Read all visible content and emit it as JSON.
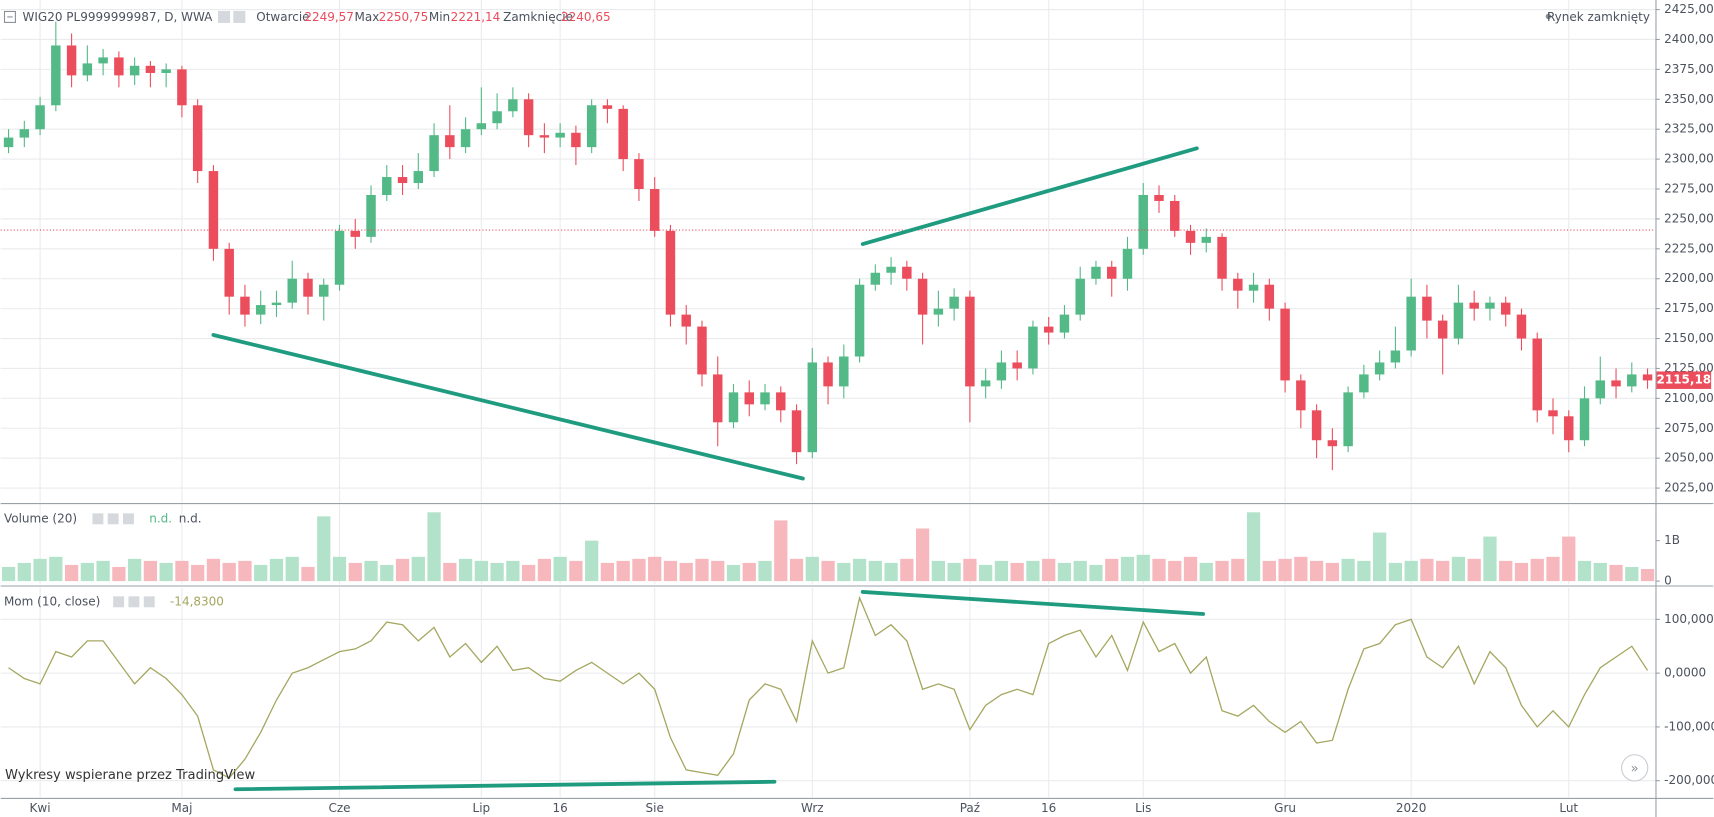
{
  "header": {
    "symbol": "WIG20 PL9999999987, D, WWA",
    "open_label": "Otwarcie",
    "open": "2249,57",
    "max_label": "Max",
    "max": "2250,75",
    "min_label": "Min",
    "min": "2221,14",
    "close_label": "Zamknięcie",
    "close": {
      "value": 2240.65,
      "label": "2240,65"
    },
    "status": "Rynek zamknięty"
  },
  "watermark": "Wykresy wspierane przez TradingView",
  "chart_data": [
    {
      "type": "candlestick",
      "up_color": "#53b987",
      "down_color": "#eb4d5c",
      "categories": [
        null,
        null,
        "Kwi",
        null,
        null,
        null,
        null,
        null,
        null,
        null,
        null,
        "Maj",
        null,
        null,
        null,
        null,
        null,
        null,
        null,
        null,
        null,
        "Cze",
        null,
        null,
        null,
        null,
        null,
        null,
        null,
        null,
        "Lip",
        null,
        null,
        null,
        null,
        "16",
        null,
        null,
        null,
        null,
        null,
        "Sie",
        null,
        null,
        null,
        null,
        null,
        null,
        null,
        null,
        null,
        "Wrz",
        null,
        null,
        null,
        null,
        null,
        null,
        null,
        null,
        null,
        "Paź",
        null,
        null,
        null,
        null,
        "16",
        null,
        null,
        null,
        null,
        null,
        "Lis",
        null,
        null,
        null,
        null,
        null,
        null,
        null,
        null,
        "Gru",
        null,
        null,
        null,
        null,
        null,
        null,
        null,
        "2020",
        null,
        null,
        null,
        null,
        null,
        null,
        null,
        null,
        null,
        "Lut",
        null,
        null,
        null,
        null,
        null
      ],
      "open": [
        2310,
        2318,
        2325,
        2345,
        2395,
        2370,
        2380,
        2385,
        2370,
        2378,
        2372,
        2375,
        2345,
        2290,
        2225,
        2185,
        2170,
        2178,
        2180,
        2200,
        2185,
        2195,
        2240,
        2235,
        2270,
        2285,
        2280,
        2290,
        2320,
        2310,
        2325,
        2330,
        2340,
        2350,
        2320,
        2318,
        2322,
        2310,
        2345,
        2342,
        2300,
        2275,
        2240,
        2170,
        2160,
        2120,
        2080,
        2105,
        2095,
        2105,
        2090,
        2055,
        2130,
        2110,
        2135,
        2195,
        2205,
        2210,
        2200,
        2170,
        2175,
        2185,
        2110,
        2115,
        2130,
        2125,
        2160,
        2155,
        2170,
        2200,
        2210,
        2200,
        2225,
        2270,
        2265,
        2240,
        2230,
        2235,
        2200,
        2190,
        2195,
        2175,
        2115,
        2090,
        2065,
        2060,
        2105,
        2120,
        2130,
        2140,
        2185,
        2165,
        2150,
        2180,
        2175,
        2180,
        2170,
        2150,
        2090,
        2085,
        2065,
        2100,
        2115,
        2110,
        2120
      ],
      "high": [
        2325,
        2332,
        2352,
        2415,
        2405,
        2395,
        2392,
        2390,
        2385,
        2382,
        2380,
        2378,
        2350,
        2295,
        2230,
        2195,
        2190,
        2190,
        2215,
        2205,
        2200,
        2245,
        2250,
        2278,
        2295,
        2295,
        2305,
        2330,
        2345,
        2335,
        2360,
        2355,
        2360,
        2355,
        2330,
        2330,
        2328,
        2350,
        2350,
        2345,
        2305,
        2285,
        2245,
        2178,
        2165,
        2135,
        2112,
        2115,
        2112,
        2110,
        2095,
        2142,
        2135,
        2145,
        2200,
        2212,
        2218,
        2215,
        2205,
        2190,
        2192,
        2190,
        2125,
        2140,
        2140,
        2165,
        2168,
        2178,
        2210,
        2215,
        2215,
        2235,
        2280,
        2278,
        2270,
        2245,
        2242,
        2238,
        2205,
        2205,
        2200,
        2180,
        2120,
        2095,
        2075,
        2110,
        2128,
        2140,
        2160,
        2200,
        2195,
        2170,
        2195,
        2190,
        2185,
        2185,
        2175,
        2155,
        2100,
        2090,
        2110,
        2135,
        2125,
        2130,
        2125
      ],
      "low": [
        2305,
        2310,
        2320,
        2340,
        2360,
        2365,
        2370,
        2360,
        2362,
        2360,
        2360,
        2335,
        2280,
        2215,
        2170,
        2160,
        2162,
        2168,
        2175,
        2170,
        2165,
        2190,
        2225,
        2230,
        2265,
        2270,
        2275,
        2285,
        2300,
        2305,
        2320,
        2325,
        2335,
        2310,
        2305,
        2310,
        2295,
        2305,
        2330,
        2290,
        2265,
        2235,
        2160,
        2145,
        2110,
        2060,
        2075,
        2085,
        2090,
        2080,
        2045,
        2050,
        2095,
        2100,
        2130,
        2190,
        2195,
        2190,
        2145,
        2160,
        2165,
        2080,
        2100,
        2108,
        2115,
        2120,
        2145,
        2150,
        2165,
        2195,
        2185,
        2190,
        2220,
        2255,
        2235,
        2220,
        2222,
        2190,
        2175,
        2180,
        2165,
        2105,
        2075,
        2050,
        2040,
        2055,
        2100,
        2115,
        2125,
        2135,
        2150,
        2120,
        2145,
        2165,
        2165,
        2160,
        2140,
        2080,
        2070,
        2055,
        2060,
        2095,
        2100,
        2105,
        2108
      ],
      "close": [
        2318,
        2325,
        2345,
        2395,
        2370,
        2380,
        2385,
        2370,
        2378,
        2372,
        2375,
        2345,
        2290,
        2225,
        2185,
        2170,
        2178,
        2180,
        2200,
        2185,
        2195,
        2240,
        2235,
        2270,
        2285,
        2280,
        2290,
        2320,
        2310,
        2325,
        2330,
        2340,
        2350,
        2320,
        2318,
        2322,
        2310,
        2345,
        2342,
        2300,
        2275,
        2240,
        2170,
        2160,
        2120,
        2080,
        2105,
        2095,
        2105,
        2090,
        2055,
        2130,
        2110,
        2135,
        2195,
        2205,
        2210,
        2200,
        2170,
        2175,
        2185,
        2110,
        2115,
        2130,
        2125,
        2160,
        2155,
        2170,
        2200,
        2210,
        2200,
        2225,
        2270,
        2265,
        2240,
        2230,
        2235,
        2200,
        2190,
        2195,
        2175,
        2115,
        2090,
        2065,
        2060,
        2105,
        2120,
        2130,
        2140,
        2185,
        2165,
        2150,
        2180,
        2175,
        2180,
        2170,
        2150,
        2090,
        2085,
        2065,
        2100,
        2115,
        2110,
        2120,
        2115
      ],
      "ylim": [
        2013,
        2433
      ],
      "yticks": [
        {
          "value": 2025,
          "label": "2025,00"
        },
        {
          "value": 2050,
          "label": "2050,00"
        },
        {
          "value": 2075,
          "label": "2075,00"
        },
        {
          "value": 2100,
          "label": "2100,00"
        },
        {
          "value": 2125,
          "label": "2125,00"
        },
        {
          "value": 2150,
          "label": "2150,00"
        },
        {
          "value": 2175,
          "label": "2175,00"
        },
        {
          "value": 2200,
          "label": "2200,00"
        },
        {
          "value": 2225,
          "label": "2225,00"
        },
        {
          "value": 2250,
          "label": "2250,00"
        },
        {
          "value": 2275,
          "label": "2275,00"
        },
        {
          "value": 2300,
          "label": "2300,00"
        },
        {
          "value": 2325,
          "label": "2325,00"
        },
        {
          "value": 2350,
          "label": "2350,00"
        },
        {
          "value": 2375,
          "label": "2375,00"
        },
        {
          "value": 2400,
          "label": "2400,00"
        },
        {
          "value": 2425,
          "label": "2425,00"
        }
      ],
      "grid": true,
      "last_price": {
        "value": 2115.18,
        "label": "2115,18"
      },
      "trendlines": [
        {
          "color": "#1f9b80",
          "x": [
            13,
            50.4
          ],
          "y": [
            2153,
            2033
          ]
        },
        {
          "color": "#1f9b80",
          "x": [
            54.2,
            75.4
          ],
          "y": [
            2229,
            2309
          ]
        }
      ]
    },
    {
      "type": "bar",
      "title": "Volume (20)",
      "legend_value": "n.d.",
      "legend_value2": "n.d.",
      "up_color": "#b2e2c9",
      "down_color": "#f6b7bd",
      "values": [
        0.35,
        0.45,
        0.55,
        0.6,
        0.4,
        0.45,
        0.5,
        0.35,
        0.55,
        0.5,
        0.45,
        0.5,
        0.4,
        0.55,
        0.45,
        0.5,
        0.4,
        0.55,
        0.6,
        0.35,
        1.6,
        0.6,
        0.45,
        0.5,
        0.4,
        0.55,
        0.6,
        1.7,
        0.45,
        0.55,
        0.5,
        0.45,
        0.5,
        0.4,
        0.55,
        0.6,
        0.5,
        1.0,
        0.45,
        0.5,
        0.55,
        0.6,
        0.5,
        0.45,
        0.55,
        0.5,
        0.4,
        0.45,
        0.5,
        1.5,
        0.55,
        0.6,
        0.5,
        0.45,
        0.55,
        0.5,
        0.45,
        0.55,
        1.3,
        0.5,
        0.45,
        0.55,
        0.4,
        0.5,
        0.45,
        0.5,
        0.55,
        0.45,
        0.5,
        0.4,
        0.55,
        0.6,
        0.65,
        0.55,
        0.5,
        0.6,
        0.45,
        0.5,
        0.55,
        1.7,
        0.5,
        0.55,
        0.6,
        0.5,
        0.45,
        0.55,
        0.5,
        1.2,
        0.45,
        0.5,
        0.55,
        0.5,
        0.6,
        0.55,
        1.1,
        0.5,
        0.45,
        0.55,
        0.6,
        1.1,
        0.5,
        0.45,
        0.4,
        0.35,
        0.3
      ],
      "ylim": [
        -0.08,
        1.89
      ],
      "yticks": [
        0,
        {
          "value": 1,
          "label": "1B"
        }
      ],
      "grid": false
    },
    {
      "type": "line",
      "title": "Mom (10, close)",
      "legend_value": {
        "value": -14.83,
        "label": "-14,8300"
      },
      "color": "#a5a760",
      "values": [
        10,
        -10,
        -20,
        40,
        30,
        60,
        60,
        20,
        -20,
        10,
        -10,
        -40,
        -80,
        -180,
        -195,
        -160,
        -110,
        -50,
        0,
        10,
        25,
        40,
        45,
        60,
        95,
        90,
        60,
        85,
        30,
        55,
        20,
        50,
        5,
        10,
        -10,
        -15,
        5,
        20,
        0,
        -20,
        0,
        -30,
        -120,
        -180,
        -185,
        -190,
        -150,
        -50,
        -20,
        -30,
        -90,
        60,
        0,
        10,
        140,
        70,
        90,
        60,
        -30,
        -20,
        -30,
        -105,
        -60,
        -40,
        -30,
        -40,
        55,
        70,
        80,
        30,
        70,
        5,
        95,
        40,
        55,
        0,
        30,
        -70,
        -80,
        -60,
        -90,
        -110,
        -90,
        -130,
        -125,
        -30,
        45,
        55,
        90,
        100,
        30,
        10,
        50,
        -20,
        40,
        10,
        -60,
        -100,
        -70,
        -100,
        -40,
        10,
        30,
        50,
        5
      ],
      "ylim": [
        -231,
        159
      ],
      "yticks": [
        {
          "value": 100,
          "label": "100,0000"
        },
        {
          "value": 0,
          "label": "0,0000"
        },
        {
          "value": -100,
          "label": "-100,0000"
        },
        {
          "value": -200,
          "label": "-200,0000"
        }
      ],
      "grid": true,
      "trendlines": [
        {
          "color": "#1f9b80",
          "x": [
            54.2,
            75.8
          ],
          "y": [
            151,
            110
          ]
        },
        {
          "color": "#1f9b80",
          "x": [
            14.4,
            48.6
          ],
          "y": [
            -216,
            -202
          ]
        }
      ]
    }
  ]
}
